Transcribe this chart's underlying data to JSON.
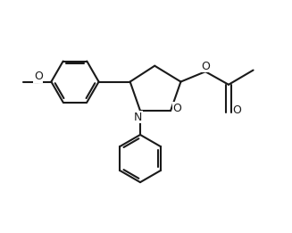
{
  "bg_color": "#ffffff",
  "line_color": "#1a1a1a",
  "line_width": 1.5,
  "font_size": 8.5,
  "fig_width": 3.27,
  "fig_height": 2.61,
  "dpi": 100,
  "xlim": [
    0,
    10
  ],
  "ylim": [
    0,
    8
  ]
}
